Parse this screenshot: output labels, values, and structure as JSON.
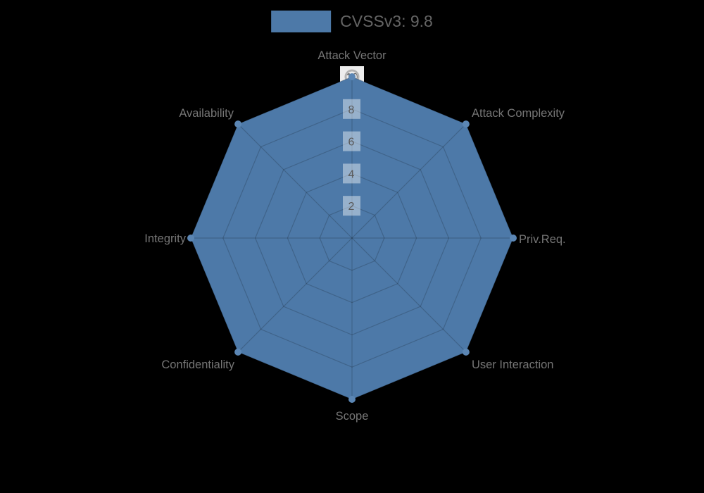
{
  "legend": {
    "label": "CVSSv3: 9.8"
  },
  "chart_data": {
    "type": "radar",
    "title": "CVSSv3: 9.8",
    "categories": [
      "Attack Vector",
      "Attack Complexity",
      "Priv.Req.",
      "User Interaction",
      "Scope",
      "Confidentiality",
      "Integrity",
      "Availability"
    ],
    "series": [
      {
        "name": "CVSSv3: 9.8",
        "values": [
          10,
          10,
          10,
          10,
          10,
          10,
          10,
          10
        ]
      }
    ],
    "rlim": [
      0,
      10
    ],
    "ticks": [
      2,
      4,
      6,
      8,
      10
    ],
    "grid": true,
    "grid_shape": "polygon",
    "legend_position": "top"
  },
  "colors": {
    "background": "#000000",
    "fill": "#4d79a8",
    "marker": "#5b86b4",
    "grid_line": "rgba(0,0,0,0.18)",
    "tick_box": "rgba(255,255,255,0.42)",
    "top_tick_box": "#ededed",
    "tick_text": "#595959",
    "axis_label": "#767676",
    "legend_text": "#646464",
    "top_marker_ring": "#b4b4b4"
  }
}
